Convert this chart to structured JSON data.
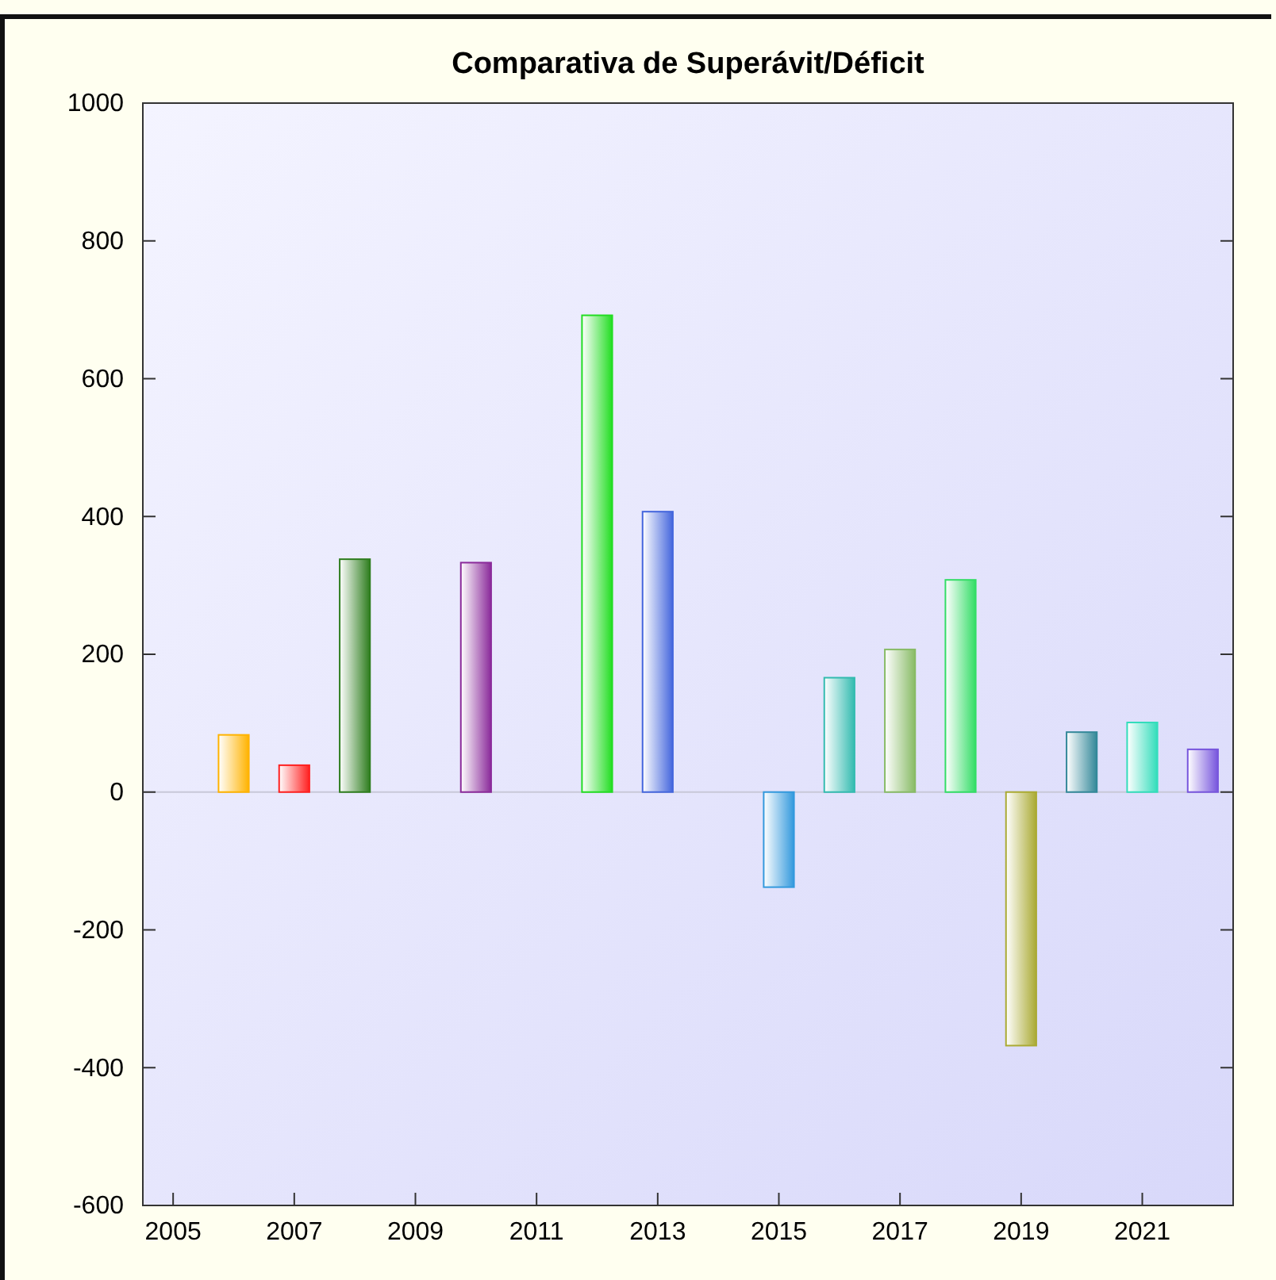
{
  "chart_data": {
    "type": "bar",
    "title": "Comparativa de Superávit/Déficit",
    "x": [
      2006,
      2007,
      2008,
      2010,
      2012,
      2013,
      2015,
      2016,
      2017,
      2018,
      2019,
      2020,
      2021,
      2022
    ],
    "values": [
      83,
      39,
      338,
      333,
      692,
      407,
      -138,
      166,
      207,
      308,
      -368,
      87,
      101,
      62
    ],
    "colors": [
      "#ffb300",
      "#ff2020",
      "#2e7d1e",
      "#8a2a9a",
      "#22dd22",
      "#4466dd",
      "#3399dd",
      "#33bbb0",
      "#88bb66",
      "#33dd66",
      "#aaaa33",
      "#338899",
      "#33ddbb",
      "#7755dd"
    ],
    "xlim": [
      2004.5,
      2022.5
    ],
    "xticks": [
      2005,
      2007,
      2009,
      2011,
      2013,
      2015,
      2017,
      2019,
      2021
    ],
    "ylim": [
      -600,
      1000
    ],
    "yticks": [
      -600,
      -400,
      -200,
      0,
      200,
      400,
      600,
      800,
      1000
    ],
    "ref_lines": [
      {
        "axis": "y",
        "value": 0,
        "color": "#c8c8d8"
      }
    ],
    "grid": false
  }
}
